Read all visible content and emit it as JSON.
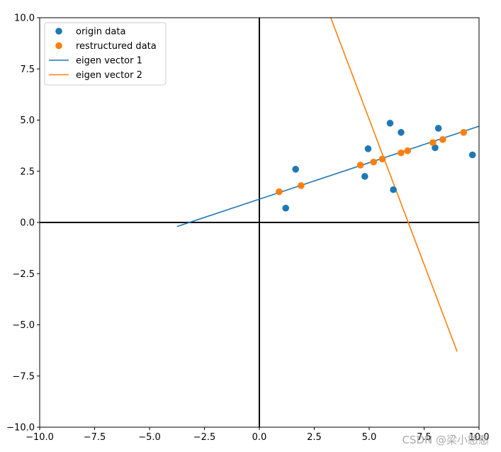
{
  "chart_data": {
    "type": "scatter",
    "title": "",
    "xlabel": "",
    "ylabel": "",
    "xlim": [
      -10,
      10
    ],
    "ylim": [
      -10,
      10
    ],
    "grid": false,
    "legend_position": "top-left",
    "x_ticks": [
      -10,
      -7.5,
      -5,
      -2.5,
      0,
      2.5,
      5,
      7.5,
      10
    ],
    "y_ticks": [
      -10,
      -7.5,
      -5,
      -2.5,
      0,
      2.5,
      5,
      7.5,
      10
    ],
    "x_tick_labels": [
      "−10.0",
      "−7.5",
      "−5.0",
      "−2.5",
      "0.0",
      "2.5",
      "5.0",
      "7.5",
      "10.0"
    ],
    "y_tick_labels": [
      "−10.0",
      "−7.5",
      "−5.0",
      "−2.5",
      "0.0",
      "2.5",
      "5.0",
      "7.5",
      "10.0"
    ],
    "series": [
      {
        "name": "origin data",
        "kind": "scatter",
        "color": "#1f77b4",
        "points": [
          [
            1.2,
            0.7
          ],
          [
            1.65,
            2.6
          ],
          [
            4.8,
            2.25
          ],
          [
            4.95,
            3.6
          ],
          [
            5.95,
            4.85
          ],
          [
            6.1,
            1.6
          ],
          [
            6.45,
            4.4
          ],
          [
            8.0,
            3.65
          ],
          [
            8.15,
            4.6
          ],
          [
            9.7,
            3.3
          ]
        ]
      },
      {
        "name": "restructured data",
        "kind": "scatter",
        "color": "#ff7f0e",
        "points": [
          [
            0.9,
            1.5
          ],
          [
            1.9,
            1.8
          ],
          [
            4.6,
            2.8
          ],
          [
            5.2,
            2.95
          ],
          [
            5.6,
            3.1
          ],
          [
            6.45,
            3.4
          ],
          [
            6.75,
            3.5
          ],
          [
            7.9,
            3.9
          ],
          [
            8.35,
            4.05
          ],
          [
            9.3,
            4.4
          ]
        ]
      },
      {
        "name": "eigen vector 1",
        "kind": "line",
        "color": "#1f77b4",
        "points": [
          [
            -3.75,
            -0.2
          ],
          [
            10.0,
            4.7
          ]
        ]
      },
      {
        "name": "eigen vector 2",
        "kind": "line",
        "color": "#ff7f0e",
        "points": [
          [
            3.25,
            10.0
          ],
          [
            9.0,
            -6.3
          ]
        ]
      }
    ],
    "reference_lines": {
      "color": "#000000",
      "x_zero": true,
      "y_zero": true
    }
  },
  "watermark": "CSDN @梁小憨憨"
}
